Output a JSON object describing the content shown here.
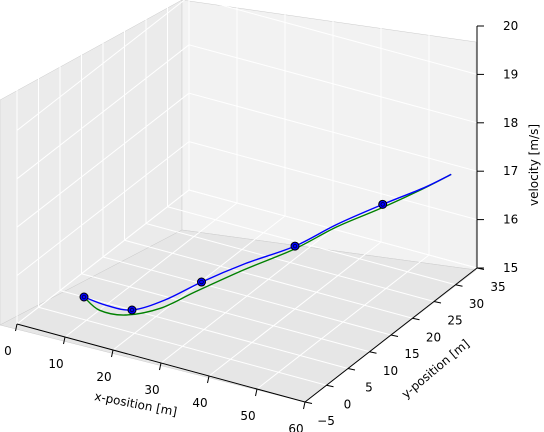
{
  "chart_data": {
    "type": "line",
    "projection": "3d",
    "xlabel": "x-position [m]",
    "ylabel": "y-position [m]",
    "zlabel": "velocity [m/s]",
    "xlim": [
      0,
      60
    ],
    "ylim": [
      -5,
      35
    ],
    "zlim": [
      15,
      20
    ],
    "xticks": [
      "0",
      "10",
      "20",
      "30",
      "40",
      "50",
      "60"
    ],
    "yticks": [
      "−5",
      "0",
      "5",
      "10",
      "15",
      "20",
      "25",
      "30",
      "35"
    ],
    "zticks": [
      "15",
      "16",
      "17",
      "18",
      "19",
      "20"
    ],
    "grid": true,
    "colors": {
      "series_blue": "#0000ff",
      "series_green": "#008000",
      "points": "#0000ff"
    },
    "waypoints": [
      {
        "x": 5,
        "y": 5,
        "z": 15.0
      },
      {
        "x": 15,
        "y": 5,
        "z": 15.0
      },
      {
        "x": 25,
        "y": 10,
        "z": 15.5
      },
      {
        "x": 40,
        "y": 15,
        "z": 16.3
      },
      {
        "x": 52,
        "y": 22,
        "z": 17.0
      }
    ],
    "series": [
      {
        "color": "blue",
        "points": [
          {
            "x": 5,
            "y": 5,
            "z": 15.0
          },
          {
            "x": 10,
            "y": 4.5,
            "z": 15.0
          },
          {
            "x": 15,
            "y": 5,
            "z": 15.0
          },
          {
            "x": 20,
            "y": 7,
            "z": 15.2
          },
          {
            "x": 25,
            "y": 10,
            "z": 15.5
          },
          {
            "x": 32,
            "y": 12.5,
            "z": 15.9
          },
          {
            "x": 40,
            "y": 15,
            "z": 16.3
          },
          {
            "x": 46,
            "y": 18,
            "z": 16.7
          },
          {
            "x": 52,
            "y": 22,
            "z": 17.0
          },
          {
            "x": 57,
            "y": 26,
            "z": 17.2
          },
          {
            "x": 60,
            "y": 29,
            "z": 17.35
          }
        ]
      },
      {
        "color": "green",
        "points": [
          {
            "x": 5,
            "y": 5,
            "z": 15.0
          },
          {
            "x": 10,
            "y": 3,
            "z": 15.0
          },
          {
            "x": 15,
            "y": 3.5,
            "z": 15.0
          },
          {
            "x": 20,
            "y": 6,
            "z": 15.1
          },
          {
            "x": 25,
            "y": 8.5,
            "z": 15.4
          },
          {
            "x": 32,
            "y": 12,
            "z": 15.8
          },
          {
            "x": 40,
            "y": 14.8,
            "z": 16.25
          },
          {
            "x": 46,
            "y": 18,
            "z": 16.65
          },
          {
            "x": 52,
            "y": 21.5,
            "z": 16.95
          },
          {
            "x": 57,
            "y": 25.5,
            "z": 17.2
          },
          {
            "x": 60,
            "y": 29,
            "z": 17.35
          }
        ]
      }
    ]
  }
}
